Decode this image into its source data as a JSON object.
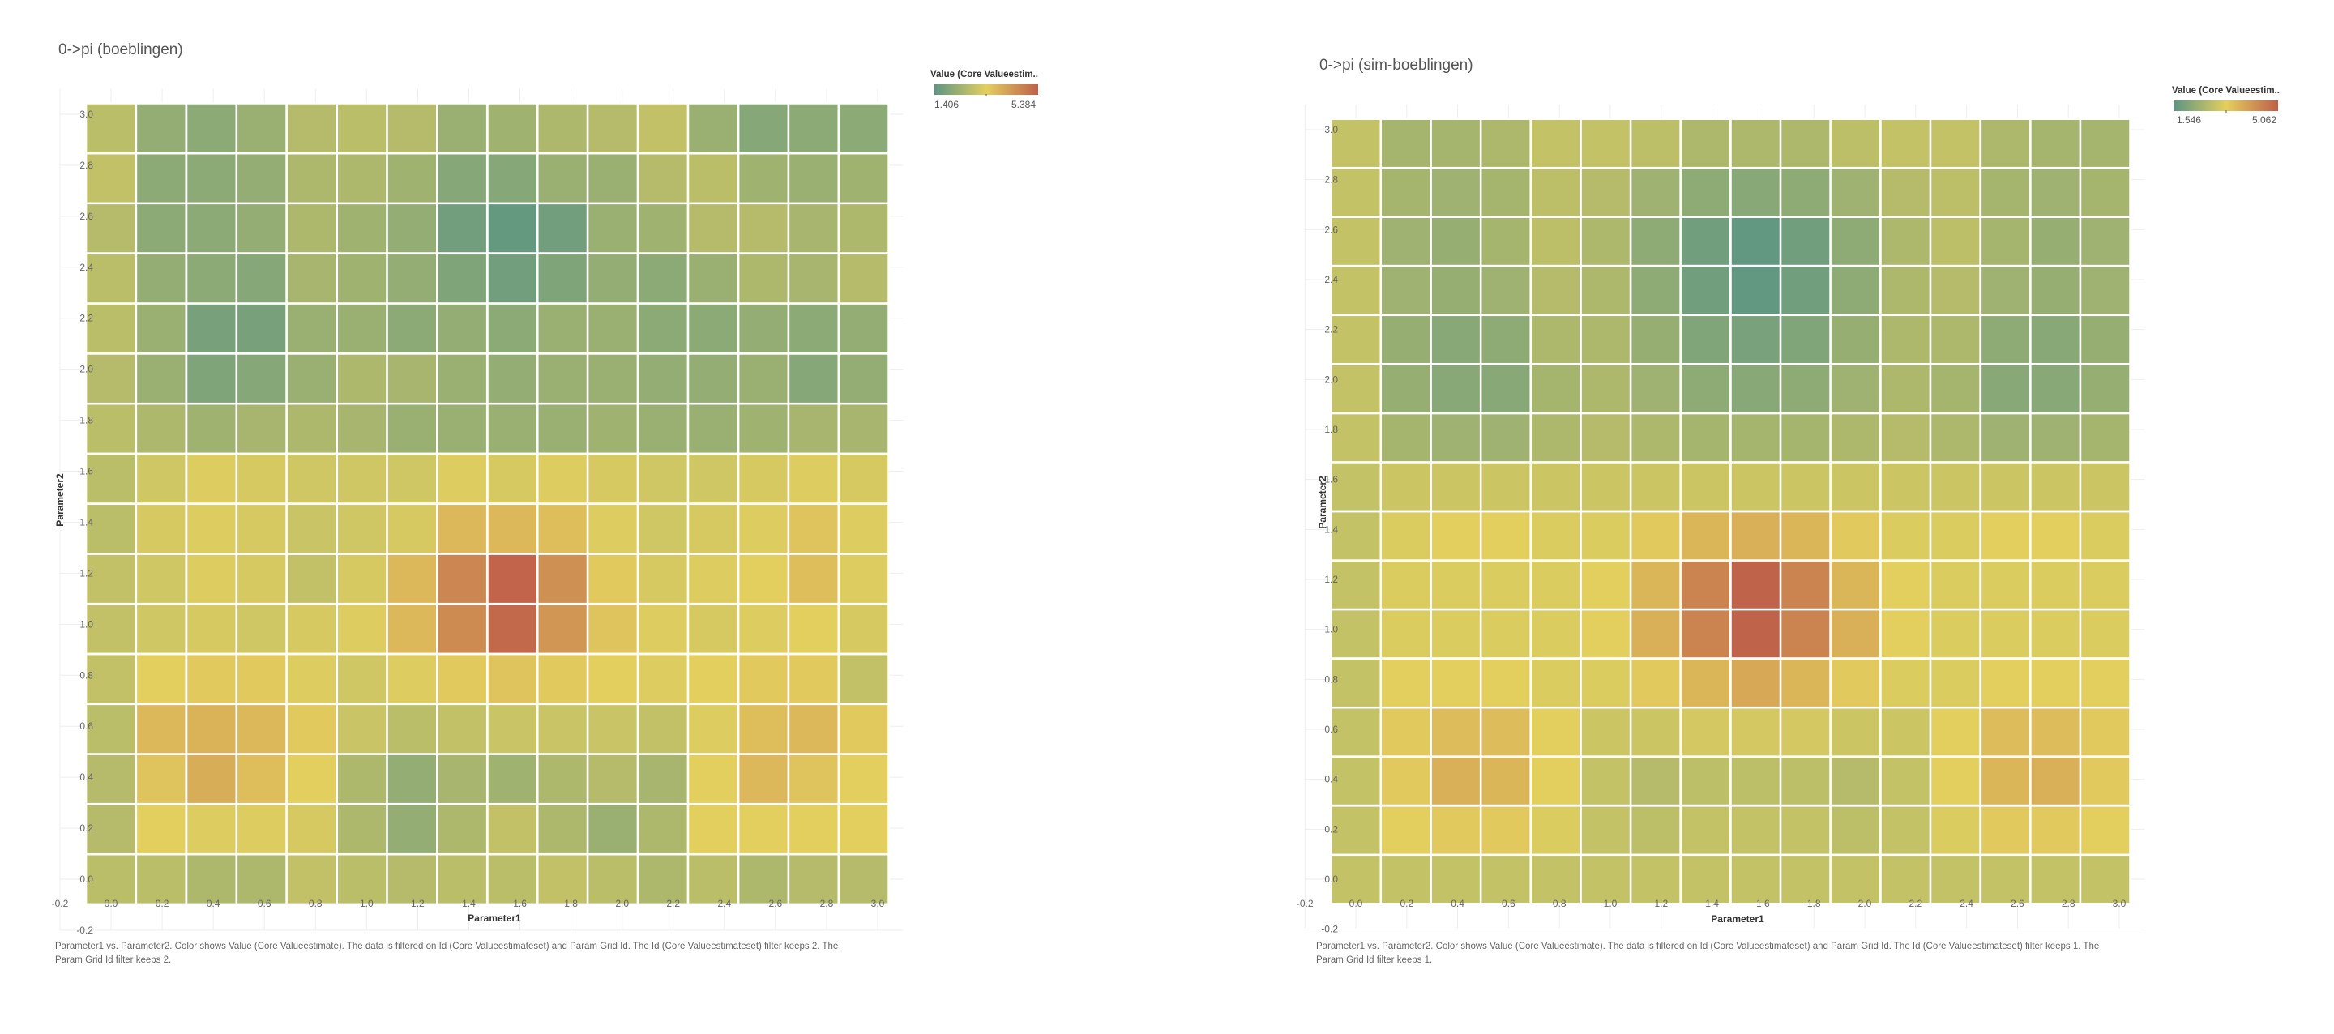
{
  "colors": {
    "low": "#5e9682",
    "mid": "#e3cf5e",
    "high": "#bf5f4a",
    "grid_line": "#eeeeee",
    "cell_border": "#ffffff"
  },
  "panels": [
    {
      "title": "0->pi (boeblingen)",
      "legend": {
        "title": "Value (Core Valueestim..",
        "min": "1.406",
        "max": "5.384",
        "min_value": 1.406,
        "max_value": 5.384
      },
      "caption_line1": "Parameter1 vs. Parameter2.  Color shows Value (Core Valueestimate). The data is filtered on Id (Core Valueestimateset) and Param Grid Id. The Id (Core Valueestimateset) filter keeps 2. The",
      "caption_line2": "Param Grid Id filter keeps 2.",
      "chart_data": {
        "type": "heatmap",
        "xlabel": "Parameter1",
        "ylabel": "Parameter2",
        "xlim": [
          -0.2,
          3.1
        ],
        "ylim": [
          -0.2,
          3.1
        ],
        "x_ticks": [
          "-0.2",
          "0.0",
          "0.2",
          "0.4",
          "0.6",
          "0.8",
          "1.0",
          "1.2",
          "1.4",
          "1.6",
          "1.8",
          "2.0",
          "2.2",
          "2.4",
          "2.6",
          "2.8",
          "3.0"
        ],
        "y_ticks": [
          "-0.2",
          "0.0",
          "0.2",
          "0.4",
          "0.6",
          "0.8",
          "1.0",
          "1.2",
          "1.4",
          "1.6",
          "1.8",
          "2.0",
          "2.2",
          "2.4",
          "2.6",
          "2.8",
          "3.0"
        ],
        "x": [
          0.0,
          0.196,
          0.393,
          0.589,
          0.785,
          0.982,
          1.178,
          1.374,
          1.571,
          1.767,
          1.963,
          2.16,
          2.356,
          2.553,
          2.749,
          2.945
        ],
        "y": [
          0.0,
          0.196,
          0.393,
          0.589,
          0.785,
          0.982,
          1.178,
          1.374,
          1.571,
          1.767,
          1.963,
          2.16,
          2.356,
          2.553,
          2.749,
          2.945
        ],
        "values": [
          [
            2.8,
            2.8,
            2.6,
            2.6,
            2.9,
            2.8,
            2.7,
            2.8,
            2.8,
            2.9,
            2.8,
            2.6,
            2.8,
            2.6,
            2.7,
            2.7
          ],
          [
            2.7,
            3.4,
            3.3,
            3.3,
            3.2,
            2.6,
            2.2,
            2.6,
            2.9,
            2.6,
            2.3,
            2.6,
            3.4,
            3.4,
            3.4,
            3.4
          ],
          [
            2.7,
            3.6,
            4.0,
            3.7,
            3.4,
            2.6,
            2.2,
            2.5,
            2.4,
            2.6,
            2.7,
            2.5,
            3.4,
            3.8,
            3.6,
            3.4
          ],
          [
            2.8,
            3.8,
            3.9,
            3.8,
            3.5,
            3.0,
            2.8,
            2.9,
            3.0,
            3.0,
            3.0,
            2.9,
            3.3,
            3.7,
            3.8,
            3.5
          ],
          [
            2.9,
            3.4,
            3.5,
            3.5,
            3.3,
            3.1,
            3.3,
            3.5,
            3.6,
            3.5,
            3.4,
            3.3,
            3.4,
            3.5,
            3.5,
            2.9
          ],
          [
            2.9,
            3.1,
            3.2,
            3.1,
            3.2,
            3.3,
            3.8,
            4.6,
            5.2,
            4.4,
            3.6,
            3.3,
            3.2,
            3.3,
            3.4,
            3.2
          ],
          [
            2.9,
            3.1,
            3.3,
            3.2,
            2.9,
            3.2,
            3.8,
            4.7,
            5.3,
            4.5,
            3.5,
            3.2,
            3.3,
            3.4,
            3.7,
            3.3
          ],
          [
            2.8,
            3.2,
            3.3,
            3.2,
            3.0,
            3.1,
            3.2,
            3.8,
            3.8,
            3.7,
            3.3,
            3.1,
            3.2,
            3.3,
            3.6,
            3.3
          ],
          [
            2.8,
            3.1,
            3.3,
            3.2,
            3.1,
            3.1,
            3.1,
            3.3,
            3.2,
            3.3,
            3.2,
            3.1,
            3.1,
            3.2,
            3.3,
            3.2
          ],
          [
            2.8,
            2.6,
            2.4,
            2.5,
            2.6,
            2.5,
            2.3,
            2.3,
            2.3,
            2.3,
            2.4,
            2.3,
            2.3,
            2.4,
            2.5,
            2.5
          ],
          [
            2.7,
            2.3,
            1.9,
            2.0,
            2.3,
            2.6,
            2.5,
            2.3,
            2.2,
            2.3,
            2.3,
            2.2,
            2.2,
            2.3,
            2.0,
            2.2
          ],
          [
            2.8,
            2.3,
            1.8,
            1.8,
            2.3,
            2.3,
            2.1,
            2.2,
            2.1,
            2.3,
            2.3,
            2.1,
            2.1,
            2.2,
            2.1,
            2.2
          ],
          [
            2.8,
            2.2,
            2.1,
            2.0,
            2.5,
            2.4,
            2.2,
            1.9,
            1.7,
            1.9,
            2.2,
            2.1,
            2.3,
            2.6,
            2.5,
            2.7
          ],
          [
            2.7,
            2.1,
            2.1,
            2.2,
            2.6,
            2.4,
            2.2,
            1.7,
            1.5,
            1.7,
            2.3,
            2.4,
            2.7,
            2.7,
            2.5,
            2.6
          ],
          [
            2.9,
            2.1,
            2.1,
            2.2,
            2.6,
            2.6,
            2.4,
            2.0,
            2.0,
            2.3,
            2.3,
            2.7,
            2.8,
            2.4,
            2.3,
            2.4
          ],
          [
            2.8,
            2.2,
            2.1,
            2.3,
            2.7,
            2.8,
            2.7,
            2.3,
            2.4,
            2.6,
            2.7,
            2.9,
            2.3,
            2.0,
            2.1,
            2.1
          ]
        ]
      }
    },
    {
      "title": "0->pi (sim-boeblingen)",
      "legend": {
        "title": "Value (Core Valueestim..",
        "min": "1.546",
        "max": "5.062",
        "min_value": 1.546,
        "max_value": 5.062
      },
      "caption_line1": "Parameter1 vs. Parameter2.  Color shows Value (Core Valueestimate). The data is filtered on Id (Core Valueestimateset) and Param Grid Id. The Id (Core Valueestimateset) filter keeps 1. The",
      "caption_line2": "Param Grid Id filter keeps 1.",
      "chart_data": {
        "type": "heatmap",
        "xlabel": "Parameter1",
        "ylabel": "Parameter2",
        "xlim": [
          -0.2,
          3.1
        ],
        "ylim": [
          -0.2,
          3.1
        ],
        "x_ticks": [
          "-0.2",
          "0.0",
          "0.2",
          "0.4",
          "0.6",
          "0.8",
          "1.0",
          "1.2",
          "1.4",
          "1.6",
          "1.8",
          "2.0",
          "2.2",
          "2.4",
          "2.6",
          "2.8",
          "3.0"
        ],
        "y_ticks": [
          "-0.2",
          "0.0",
          "0.2",
          "0.4",
          "0.6",
          "0.8",
          "1.0",
          "1.2",
          "1.4",
          "1.6",
          "1.8",
          "2.0",
          "2.2",
          "2.4",
          "2.6",
          "2.8",
          "3.0"
        ],
        "x": [
          0.0,
          0.196,
          0.393,
          0.589,
          0.785,
          0.982,
          1.178,
          1.374,
          1.571,
          1.767,
          1.963,
          2.16,
          2.356,
          2.553,
          2.749,
          2.945
        ],
        "y": [
          0.0,
          0.196,
          0.393,
          0.589,
          0.785,
          0.982,
          1.178,
          1.374,
          1.571,
          1.767,
          1.963,
          2.16,
          2.356,
          2.553,
          2.749,
          2.945
        ],
        "values": [
          [
            2.9,
            2.9,
            2.9,
            2.9,
            2.9,
            2.9,
            2.9,
            2.9,
            2.9,
            2.9,
            2.9,
            2.9,
            2.9,
            2.9,
            2.9,
            2.9
          ],
          [
            2.9,
            3.3,
            3.4,
            3.4,
            3.2,
            2.9,
            2.8,
            2.9,
            2.9,
            2.9,
            2.8,
            2.9,
            3.2,
            3.4,
            3.4,
            3.3
          ],
          [
            2.9,
            3.4,
            3.8,
            3.7,
            3.3,
            2.9,
            2.7,
            2.8,
            2.8,
            2.8,
            2.7,
            2.9,
            3.3,
            3.7,
            3.8,
            3.4
          ],
          [
            2.9,
            3.4,
            3.6,
            3.6,
            3.3,
            3.0,
            3.0,
            3.1,
            3.1,
            3.1,
            3.0,
            3.0,
            3.3,
            3.6,
            3.6,
            3.4
          ],
          [
            2.9,
            3.3,
            3.3,
            3.3,
            3.2,
            3.2,
            3.4,
            3.7,
            3.9,
            3.7,
            3.4,
            3.2,
            3.2,
            3.3,
            3.3,
            3.3
          ],
          [
            2.9,
            3.2,
            3.2,
            3.2,
            3.2,
            3.3,
            3.8,
            4.5,
            5.0,
            4.5,
            3.8,
            3.3,
            3.2,
            3.2,
            3.2,
            3.2
          ],
          [
            2.9,
            3.2,
            3.2,
            3.2,
            3.2,
            3.3,
            3.7,
            4.5,
            5.0,
            4.5,
            3.7,
            3.3,
            3.2,
            3.2,
            3.2,
            3.2
          ],
          [
            2.9,
            3.2,
            3.3,
            3.3,
            3.2,
            3.2,
            3.4,
            3.7,
            3.8,
            3.7,
            3.4,
            3.2,
            3.2,
            3.3,
            3.3,
            3.2
          ],
          [
            2.9,
            3.0,
            3.0,
            3.0,
            3.0,
            3.0,
            3.0,
            3.0,
            3.0,
            3.0,
            3.0,
            3.0,
            3.0,
            3.0,
            3.0,
            3.0
          ],
          [
            2.9,
            2.5,
            2.4,
            2.4,
            2.6,
            2.7,
            2.6,
            2.5,
            2.5,
            2.5,
            2.6,
            2.7,
            2.6,
            2.4,
            2.4,
            2.5
          ],
          [
            2.9,
            2.3,
            2.1,
            2.1,
            2.5,
            2.6,
            2.4,
            2.2,
            2.1,
            2.2,
            2.4,
            2.6,
            2.5,
            2.1,
            2.1,
            2.3
          ],
          [
            2.9,
            2.3,
            2.1,
            2.2,
            2.6,
            2.6,
            2.3,
            2.0,
            1.9,
            2.0,
            2.3,
            2.6,
            2.6,
            2.2,
            2.1,
            2.3
          ],
          [
            2.9,
            2.4,
            2.3,
            2.4,
            2.7,
            2.6,
            2.2,
            1.8,
            1.6,
            1.8,
            2.2,
            2.6,
            2.7,
            2.4,
            2.3,
            2.4
          ],
          [
            2.9,
            2.4,
            2.3,
            2.5,
            2.8,
            2.6,
            2.2,
            1.8,
            1.6,
            1.8,
            2.2,
            2.6,
            2.8,
            2.5,
            2.3,
            2.4
          ],
          [
            2.9,
            2.5,
            2.4,
            2.5,
            2.8,
            2.7,
            2.4,
            2.2,
            2.1,
            2.2,
            2.4,
            2.7,
            2.8,
            2.5,
            2.4,
            2.5
          ],
          [
            2.9,
            2.5,
            2.5,
            2.6,
            2.9,
            2.9,
            2.8,
            2.6,
            2.6,
            2.6,
            2.8,
            2.9,
            2.9,
            2.6,
            2.5,
            2.5
          ]
        ]
      }
    }
  ]
}
